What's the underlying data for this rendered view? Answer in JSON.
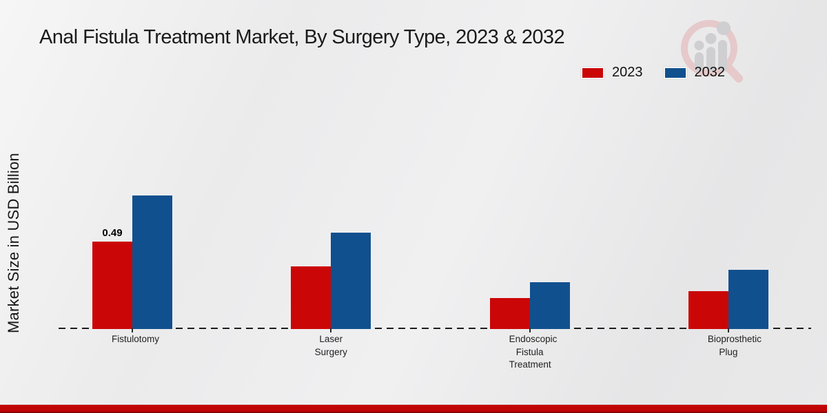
{
  "page": {
    "title": "Anal Fistula Treatment Market, By Surgery Type, 2023 & 2032"
  },
  "ylabel": "Market Size in USD Billion",
  "legend": {
    "items": [
      {
        "label": "2023",
        "color": "#cb0606"
      },
      {
        "label": "2032",
        "color": "#11508e"
      }
    ]
  },
  "footer": {
    "bar_color": "#c10505"
  },
  "chart_data": {
    "type": "bar",
    "title": "Anal Fistula Treatment Market, By Surgery Type, 2023 & 2032",
    "xlabel": "",
    "ylabel": "Market Size in USD Billion",
    "categories": [
      "Fistulotomy",
      "Laser Surgery",
      "Endoscopic Fistula Treatment",
      "Bioprosthetic Plug"
    ],
    "series": [
      {
        "name": "2023",
        "color": "#cb0606",
        "values": [
          0.49,
          0.35,
          0.17,
          0.21
        ]
      },
      {
        "name": "2032",
        "color": "#11508e",
        "values": [
          0.75,
          0.54,
          0.26,
          0.33
        ]
      }
    ],
    "bar_labels": [
      {
        "series_index": 0,
        "category_index": 0,
        "text": "0.49"
      }
    ],
    "ylim": [
      0,
      0.8
    ],
    "grid": false,
    "axis_ticks_visible": false,
    "legend_position": "top-right",
    "baseline_style": "dashed"
  }
}
